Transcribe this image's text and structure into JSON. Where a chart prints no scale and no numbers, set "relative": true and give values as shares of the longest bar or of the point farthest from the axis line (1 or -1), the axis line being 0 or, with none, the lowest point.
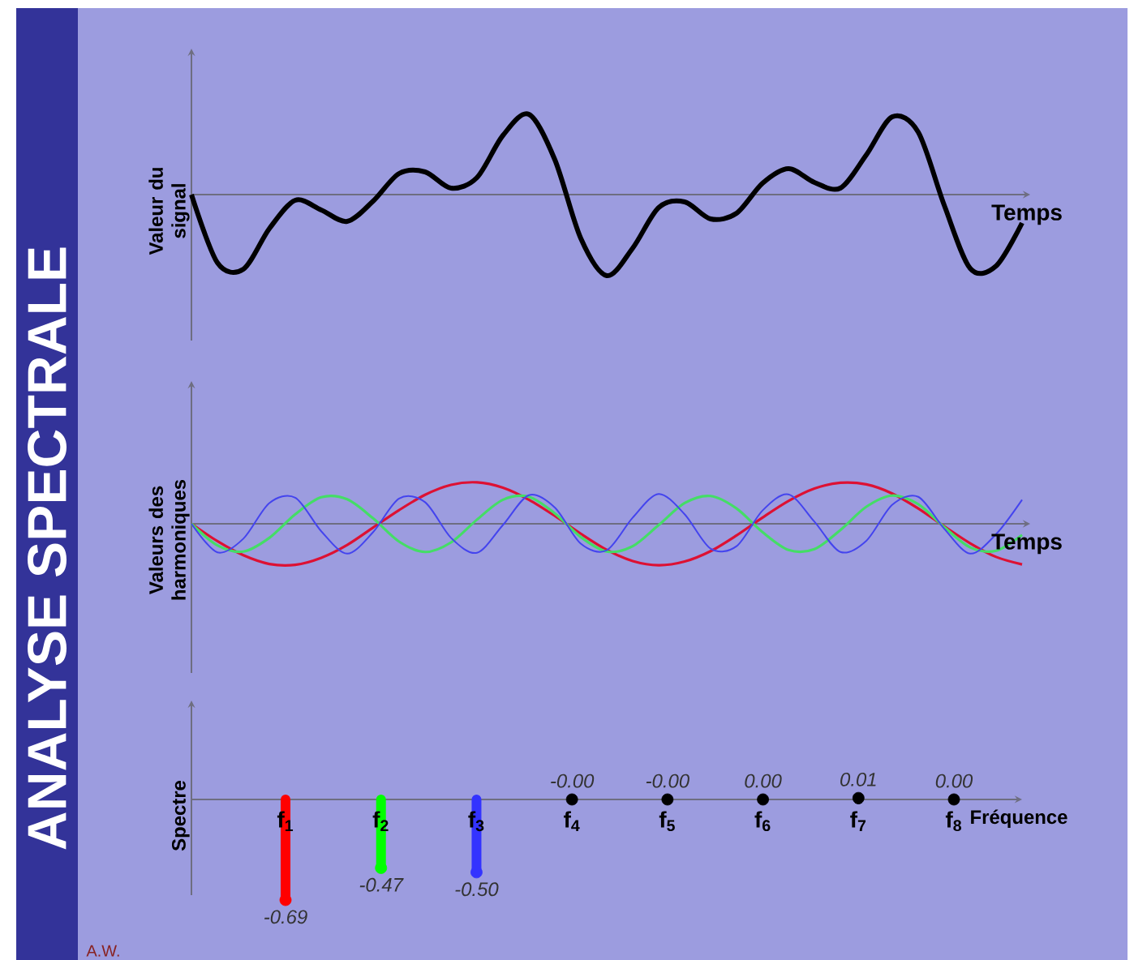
{
  "chart_data": [
    {
      "type": "line",
      "title": "ANALYSE SPECTRALE",
      "ylabel": "Valeur du signal",
      "xlabel": "Temps",
      "relative": true,
      "categories": [
        null,
        null,
        null,
        null,
        null,
        null,
        null,
        null,
        null,
        null,
        null,
        null,
        null,
        null,
        null,
        null,
        null,
        null,
        null,
        null,
        null,
        null,
        null,
        null,
        null,
        null,
        null,
        null,
        null,
        null,
        null,
        null,
        null
      ],
      "series": [
        {
          "color": "#000000",
          "values": [
            0,
            -0.84,
            -0.92,
            -0.42,
            -0.07,
            -0.19,
            -0.33,
            -0.08,
            0.26,
            0.28,
            0.08,
            0.21,
            0.73,
            0.99,
            0.43,
            -0.54,
            -1,
            -0.66,
            -0.16,
            -0.09,
            -0.3,
            -0.23,
            0.14,
            0.32,
            0.15,
            0.08,
            0.49,
            0.96,
            0.77,
            -0.13,
            -0.91,
            -0.88,
            -0.35
          ]
        }
      ]
    },
    {
      "type": "line",
      "ylabel": "Valeurs des harmoniques",
      "xlabel": "Temps",
      "relative": true,
      "categories": [
        null,
        null,
        null,
        null,
        null,
        null,
        null,
        null,
        null,
        null,
        null,
        null,
        null,
        null,
        null,
        null,
        null,
        null,
        null,
        null,
        null,
        null,
        null,
        null,
        null,
        null,
        null,
        null,
        null,
        null,
        null,
        null,
        null
      ],
      "series": [
        {
          "color": "#dd1133",
          "values": [
            0,
            -0.42,
            -0.76,
            -0.97,
            -0.99,
            -0.82,
            -0.51,
            -0.09,
            0.33,
            0.7,
            0.94,
            1,
            0.87,
            0.58,
            0.19,
            -0.24,
            -0.63,
            -0.9,
            -1,
            -0.91,
            -0.66,
            -0.28,
            0.15,
            0.55,
            0.85,
            0.99,
            0.95,
            0.73,
            0.37,
            -0.06,
            -0.47,
            -0.8,
            -0.98
          ]
        },
        {
          "color": "#44dd66",
          "values": [
            0,
            -0.52,
            -0.67,
            -0.34,
            0.23,
            0.64,
            0.59,
            0.13,
            -0.43,
            -0.68,
            -0.45,
            0.1,
            0.58,
            0.65,
            0.25,
            -0.32,
            -0.67,
            -0.54,
            -0.03,
            0.5,
            0.67,
            0.37,
            -0.2,
            -0.63,
            -0.61,
            -0.15,
            0.41,
            0.68,
            0.47,
            -0.08,
            -0.57,
            -0.65,
            -0.27
          ]
        },
        {
          "color": "#4444ee",
          "values": [
            0,
            -0.69,
            -0.36,
            0.5,
            0.63,
            -0.18,
            -0.72,
            -0.2,
            0.61,
            0.52,
            -0.34,
            -0.7,
            -0.03,
            0.69,
            0.39,
            -0.48,
            -0.64,
            0.15,
            0.72,
            0.23,
            -0.6,
            -0.54,
            0.32,
            0.71,
            0.05,
            -0.68,
            -0.41,
            0.46,
            0.65,
            -0.12,
            -0.72,
            -0.25,
            0.58
          ]
        }
      ]
    },
    {
      "type": "lollipop",
      "ylabel": "Spectre",
      "xlabel": "Fréquence",
      "marker": "circle",
      "categories": [
        "f$_{1}$",
        "f$_{2}$",
        "f$_{3}$",
        "f$_{4}$",
        "f$_{5}$",
        "f$_{6}$",
        "f$_{7}$",
        "f$_{8}$"
      ],
      "values": [
        -0.69,
        -0.47,
        -0.5,
        0,
        0,
        0,
        0.01,
        0
      ],
      "value_labels": [
        "-0.69",
        "-0.47",
        "-0.50",
        "-0.00",
        "-0.00",
        "0.00",
        "0.01",
        "0.00"
      ],
      "colors": [
        "#ff0000",
        "#00ff00",
        "#3333ff",
        "#000000",
        "#000000",
        "#000000",
        "#000000",
        "#000000"
      ],
      "annotations": [
        "A.W."
      ]
    }
  ]
}
